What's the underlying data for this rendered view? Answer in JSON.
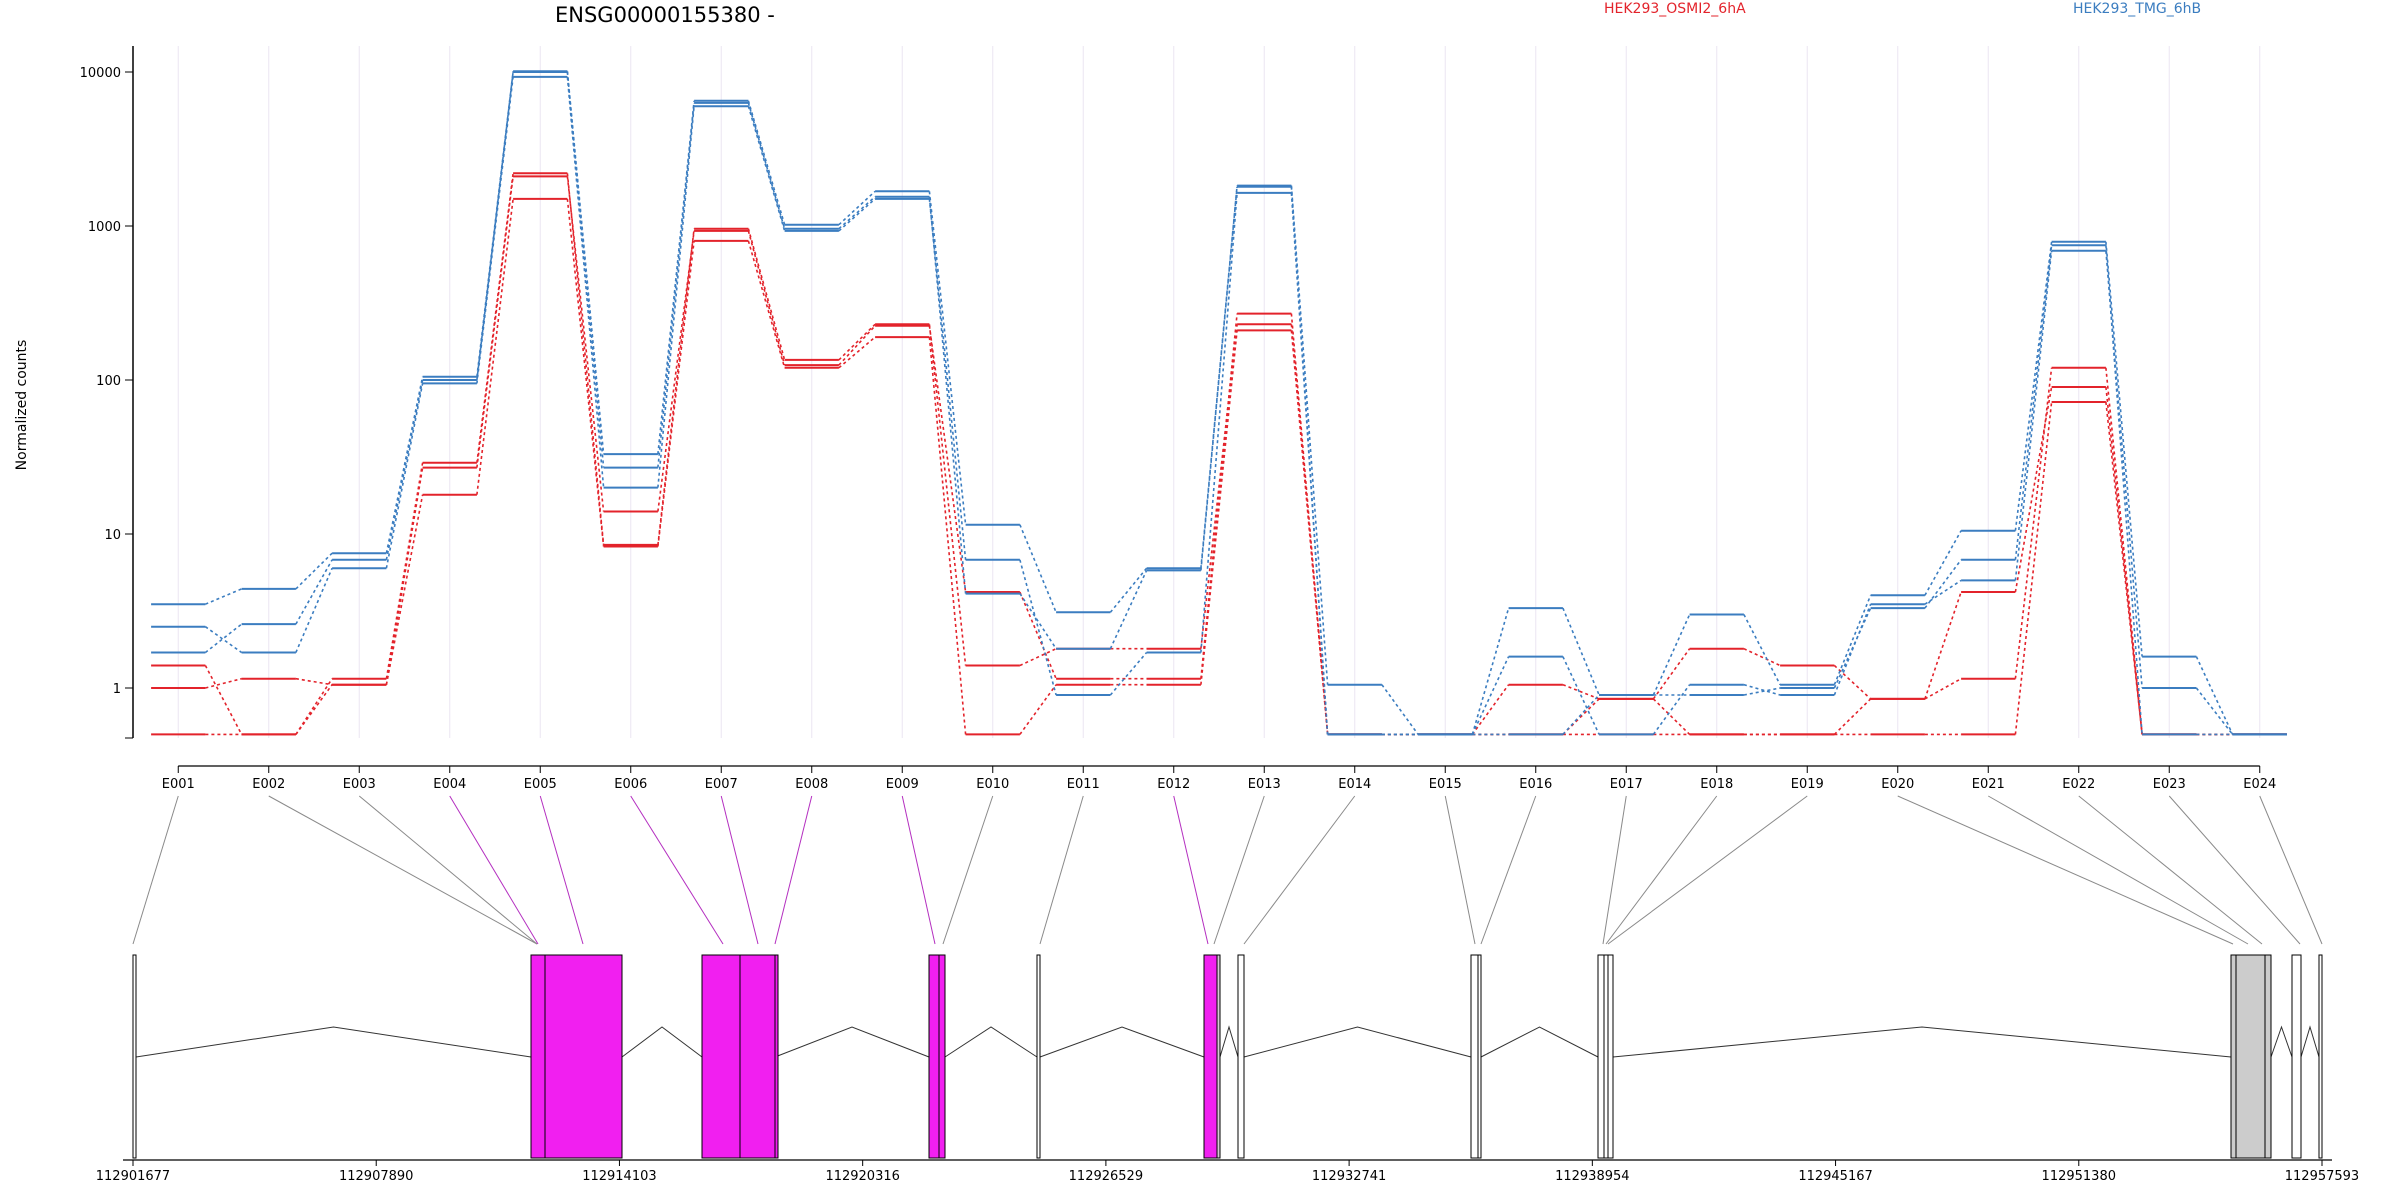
{
  "chart_data": {
    "type": "line",
    "title": "ENSG00000155380 -",
    "ylabel": "Normalized counts",
    "xlabel": "",
    "y_scale": "log",
    "ylim": [
      0.5,
      14000
    ],
    "y_ticks": [
      {
        "value": 1,
        "label": "1"
      },
      {
        "value": 10,
        "label": "10"
      },
      {
        "value": 100,
        "label": "100"
      },
      {
        "value": 1000,
        "label": "1000"
      },
      {
        "value": 10000,
        "label": "10000"
      }
    ],
    "grid": true,
    "legend_position": "top",
    "colors": {
      "osmi": "#e3232b",
      "tmg": "#3b7dc0",
      "coding_exon": "#f11ff0",
      "noncoding_exon": "#cccccc",
      "dexseq_line": "#b42fc0"
    },
    "categories": [
      "E001",
      "E002",
      "E003",
      "E004",
      "E005",
      "E006",
      "E007",
      "E008",
      "E009",
      "E010",
      "E011",
      "E012",
      "E013",
      "E014",
      "E015",
      "E016",
      "E017",
      "E018",
      "E019",
      "E020",
      "E021",
      "E022",
      "E023",
      "E024"
    ],
    "series": [
      {
        "name": "HEK293_OSMI2_6hA",
        "group": "osmi",
        "values": [
          1.4,
          0.5,
          1.05,
          18,
          1500,
          8.3,
          800,
          120,
          190,
          0.5,
          1.05,
          1.05,
          210,
          0.5,
          0.5,
          0.5,
          0.5,
          0.5,
          0.5,
          0.5,
          0.5,
          72,
          0.5,
          0.5
        ]
      },
      {
        "name": "",
        "group": "osmi",
        "values": [
          1.0,
          1.15,
          1.05,
          27,
          2100,
          14,
          930,
          125,
          225,
          4.2,
          1.15,
          1.15,
          270,
          0.5,
          0.5,
          1.05,
          0.85,
          0.5,
          0.5,
          0.85,
          4.2,
          90,
          0.5,
          0.5
        ]
      },
      {
        "name": "",
        "group": "osmi",
        "values": [
          0.5,
          0.5,
          1.15,
          29,
          2200,
          8.5,
          960,
          135,
          230,
          1.4,
          1.8,
          1.8,
          230,
          0.5,
          0.5,
          0.5,
          0.85,
          1.8,
          1.4,
          0.85,
          1.15,
          120,
          0.5,
          0.5
        ]
      },
      {
        "name": "HEK293_TMG_6hB",
        "group": "tmg",
        "values": [
          3.5,
          4.4,
          7.5,
          105,
          10100,
          33,
          6500,
          1020,
          1680,
          11.5,
          3.1,
          6.0,
          1830,
          1.05,
          0.5,
          3.3,
          0.9,
          3.0,
          1.05,
          4.0,
          10.5,
          790,
          1.6,
          0.5
        ]
      },
      {
        "name": "",
        "group": "tmg",
        "values": [
          2.5,
          1.7,
          6.0,
          95,
          9300,
          20,
          6000,
          930,
          1500,
          6.8,
          0.9,
          1.7,
          1640,
          0.5,
          0.5,
          1.6,
          0.5,
          1.05,
          0.9,
          3.5,
          5.0,
          690,
          1.0,
          0.5
        ]
      },
      {
        "name": "",
        "group": "tmg",
        "values": [
          1.7,
          2.6,
          6.8,
          100,
          10000,
          27,
          6300,
          960,
          1550,
          4.1,
          1.8,
          5.8,
          1800,
          0.5,
          0.5,
          0.5,
          0.9,
          0.9,
          1.0,
          3.3,
          6.8,
          750,
          0.5,
          0.5
        ]
      }
    ],
    "legend": [
      {
        "label": "HEK293_OSMI2_6hA",
        "group": "osmi"
      },
      {
        "label": "HEK293_TMG_6hB",
        "group": "tmg"
      }
    ],
    "gene_model": {
      "coordinate_ticks": [
        "112901677",
        "112907890",
        "112914103",
        "112920316",
        "112926529",
        "112932741",
        "112938954",
        "112945167",
        "112951380",
        "112957593"
      ],
      "exon_kinds": [
        "noncoding",
        "noncoding",
        "noncoding",
        "coding",
        "coding",
        "coding",
        "coding",
        "coding",
        "coding",
        "noncoding",
        "noncoding",
        "coding",
        "noncoding",
        "noncoding",
        "noncoding",
        "noncoding",
        "noncoding",
        "noncoding",
        "noncoding",
        "noncoding",
        "noncoding",
        "noncoding",
        "noncoding",
        "noncoding"
      ]
    }
  }
}
